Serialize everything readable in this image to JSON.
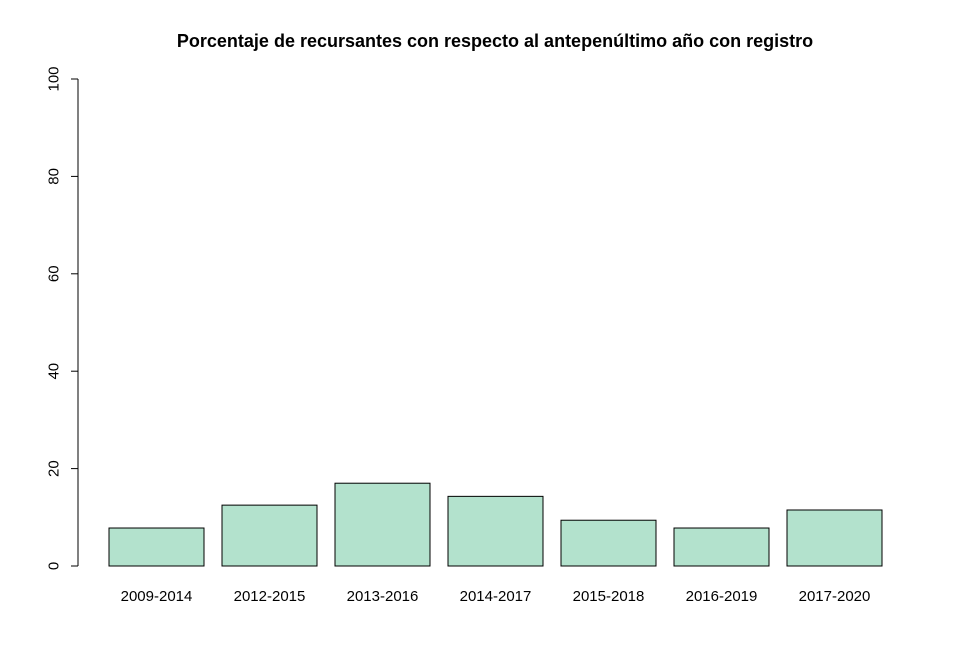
{
  "chart_data": {
    "type": "bar",
    "title": "Porcentaje de recursantes con respecto al antepenúltimo año con registro",
    "xlabel": "",
    "ylabel": "",
    "categories": [
      "2009-2014",
      "2012-2015",
      "2013-2016",
      "2014-2017",
      "2015-2018",
      "2016-2019",
      "2017-2020"
    ],
    "values": [
      7.8,
      12.5,
      17.0,
      14.3,
      9.4,
      7.8,
      11.5
    ],
    "ylim": [
      0,
      100
    ],
    "yticks": [
      "0",
      "20",
      "40",
      "60",
      "80",
      "100"
    ],
    "grid": false,
    "bar_color": "#b3e2cd"
  }
}
